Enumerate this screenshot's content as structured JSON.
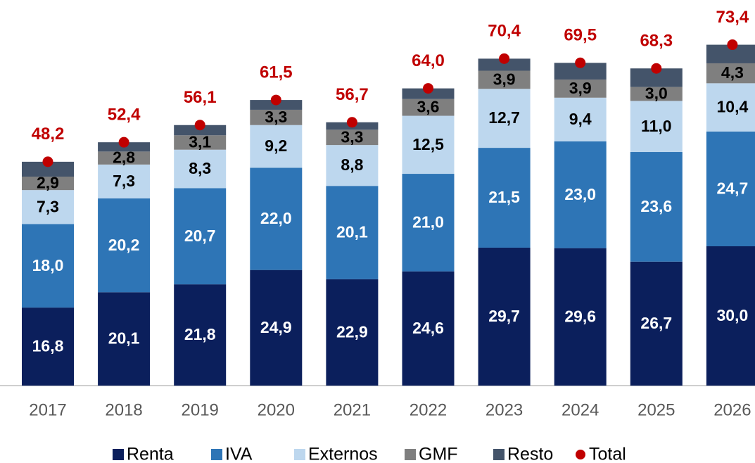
{
  "chart_data": {
    "type": "stacked_bar",
    "categories": [
      "2017",
      "2018",
      "2019",
      "2020",
      "2021",
      "2022",
      "2023",
      "2024",
      "2025",
      "2026"
    ],
    "ylim": [
      0,
      80
    ],
    "series": [
      {
        "name": "Renta",
        "color": "#0b1f5c",
        "label_color": "#ffffff",
        "values": [
          16.8,
          20.1,
          21.8,
          24.9,
          22.9,
          24.6,
          29.7,
          29.6,
          26.7,
          30.0
        ],
        "value_labels": [
          "16,8",
          "20,1",
          "21,8",
          "24,9",
          "22,9",
          "24,6",
          "29,7",
          "29,6",
          "26,7",
          "30,0"
        ]
      },
      {
        "name": "IVA",
        "color": "#2e75b6",
        "label_color": "#ffffff",
        "values": [
          18.0,
          20.2,
          20.7,
          22.0,
          20.1,
          21.0,
          21.5,
          23.0,
          23.6,
          24.7
        ],
        "value_labels": [
          "18,0",
          "20,2",
          "20,7",
          "22,0",
          "20,1",
          "21,0",
          "21,5",
          "23,0",
          "23,6",
          "24,7"
        ]
      },
      {
        "name": "Externos",
        "color": "#bdd7ee",
        "label_color": "#000000",
        "values": [
          7.3,
          7.3,
          8.3,
          9.2,
          8.8,
          12.5,
          12.7,
          9.4,
          11.0,
          10.4
        ],
        "value_labels": [
          "7,3",
          "7,3",
          "8,3",
          "9,2",
          "8,8",
          "12,5",
          "12,7",
          "9,4",
          "11,0",
          "10,4"
        ]
      },
      {
        "name": "GMF",
        "color": "#7f7f7f",
        "label_color": "#000000",
        "values": [
          2.9,
          2.8,
          3.1,
          3.3,
          3.3,
          3.6,
          3.9,
          3.9,
          3.0,
          4.3
        ],
        "value_labels": [
          "2,9",
          "2,8",
          "3,1",
          "3,3",
          "3,3",
          "3,6",
          "3,9",
          "3,9",
          "3,0",
          "4,3"
        ]
      },
      {
        "name": "Resto",
        "color": "#44546a",
        "values": [
          3.2,
          2.0,
          2.2,
          2.1,
          1.6,
          2.3,
          2.6,
          3.6,
          4.0,
          4.0
        ]
      },
      {
        "name": "Total",
        "color": "#c00000",
        "mark": "dot",
        "values": [
          48.2,
          52.4,
          56.1,
          61.5,
          56.7,
          64.0,
          70.4,
          69.5,
          68.3,
          73.4
        ],
        "value_labels": [
          "48,2",
          "52,4",
          "56,1",
          "61,5",
          "56,7",
          "64,0",
          "70,4",
          "69,5",
          "68,3",
          "73,4"
        ]
      }
    ]
  }
}
